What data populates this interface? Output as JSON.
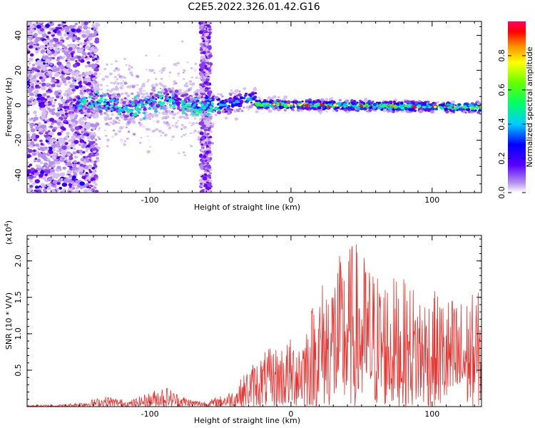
{
  "title": "C2E5.2022.326.01.42.G16",
  "chart_data": [
    {
      "type": "heatmap",
      "xlabel": "Height of straight line (km)",
      "ylabel": "Frequency (Hz)",
      "xlim": [
        -187,
        135
      ],
      "ylim": [
        -50,
        48
      ],
      "xticks": [
        -100,
        0,
        100
      ],
      "xtick_labels": [
        "-100",
        "0",
        "100"
      ],
      "yticks": [
        -40,
        -20,
        0,
        20,
        40
      ],
      "ytick_labels": [
        "-40",
        "-20",
        "0",
        "20",
        "40"
      ],
      "colorbar": {
        "label": "Normalized spectral amplitude",
        "range": [
          0,
          1
        ],
        "ticks": [
          0.0,
          0.2,
          0.4,
          0.6,
          0.8
        ],
        "tick_labels": [
          "0.0",
          "0.2",
          "0.4",
          "0.6",
          "0.8"
        ],
        "colormap": "rainbow"
      },
      "grid": false
    },
    {
      "type": "line",
      "xlabel": "Height of straight line (km)",
      "ylabel": "SNR (10 * V/V)",
      "scale_label": "(x10",
      "scale_exp": "4",
      "scale_close": ")",
      "xlim": [
        -187,
        135
      ],
      "ylim": [
        0,
        2.35
      ],
      "xticks": [
        -100,
        0,
        100
      ],
      "xtick_labels": [
        "-100",
        "0",
        "100"
      ],
      "yticks": [
        0.5,
        1.0,
        1.5,
        2.0
      ],
      "ytick_labels": [
        "0.5",
        "1.0",
        "1.5",
        "2.0"
      ],
      "series": [
        {
          "color": "#e8322e",
          "envelope": [
            [
              -187,
              0.02
            ],
            [
              -160,
              0.03
            ],
            [
              -145,
              0.08
            ],
            [
              -130,
              0.15
            ],
            [
              -115,
              0.08
            ],
            [
              -100,
              0.2
            ],
            [
              -90,
              0.3
            ],
            [
              -80,
              0.18
            ],
            [
              -70,
              0.1
            ],
            [
              -60,
              0.08
            ],
            [
              -50,
              0.15
            ],
            [
              -40,
              0.25
            ],
            [
              -30,
              0.55
            ],
            [
              -20,
              0.75
            ],
            [
              -10,
              0.85
            ],
            [
              0,
              0.95
            ],
            [
              10,
              1.2
            ],
            [
              20,
              1.7
            ],
            [
              30,
              2.0
            ],
            [
              45,
              2.3
            ],
            [
              60,
              1.9
            ],
            [
              80,
              1.75
            ],
            [
              100,
              1.6
            ],
            [
              120,
              1.5
            ],
            [
              135,
              1.6
            ]
          ]
        }
      ],
      "grid": false
    }
  ]
}
